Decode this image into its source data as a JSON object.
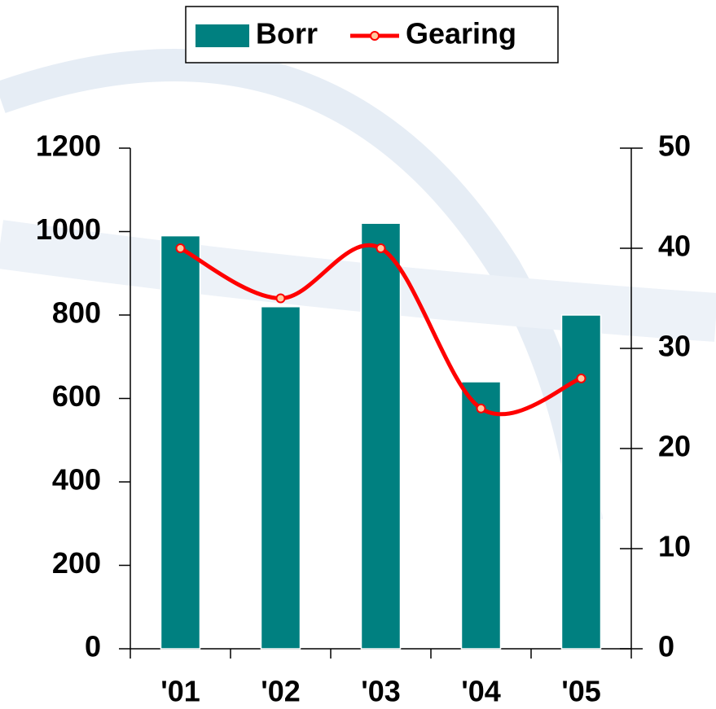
{
  "chart_data": {
    "type": "bar_line",
    "categories": [
      "'01",
      "'02",
      "'03",
      "'04",
      "'05"
    ],
    "series": [
      {
        "name": "Borr",
        "type": "bar",
        "color": "#008080",
        "values": [
          990,
          820,
          1020,
          640,
          800
        ]
      },
      {
        "name": "Gearing",
        "type": "line",
        "color": "#ff0000",
        "axis": "y2",
        "values": [
          40,
          35,
          40,
          24,
          27
        ]
      }
    ],
    "ylim": [
      0,
      1200
    ],
    "yticks": [
      0,
      200,
      400,
      600,
      800,
      1000,
      1200
    ],
    "y2lim": [
      0,
      50
    ],
    "y2ticks": [
      0,
      10,
      20,
      30,
      40,
      50
    ],
    "legend": "top"
  }
}
